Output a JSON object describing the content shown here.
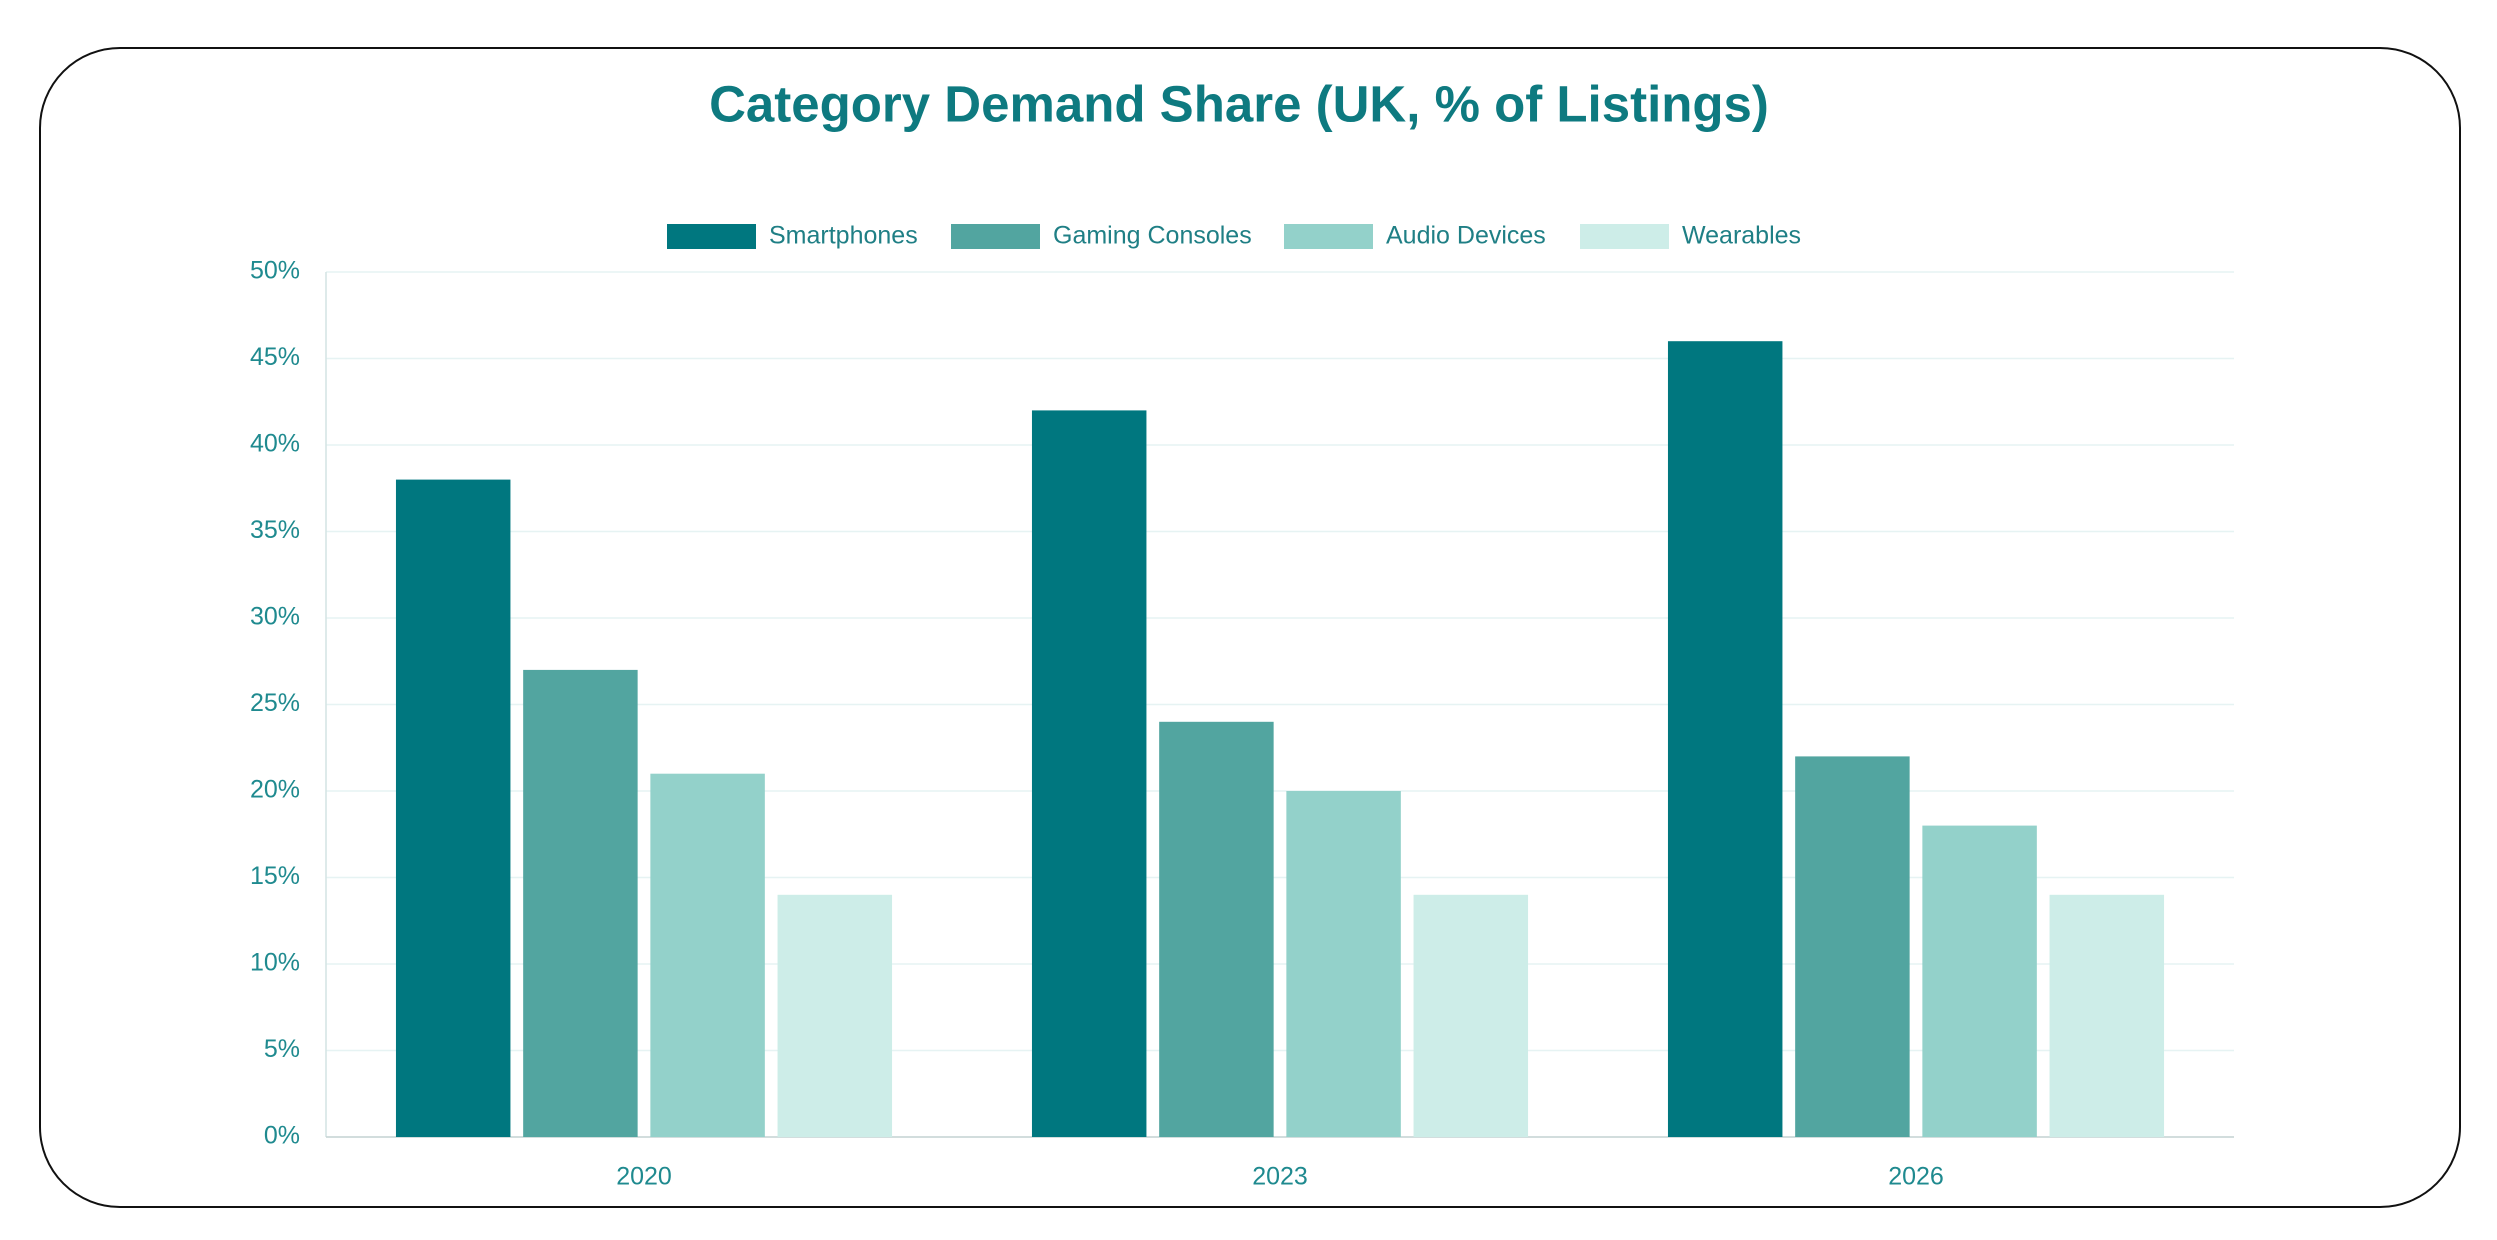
{
  "chart_data": {
    "type": "bar",
    "title": "Category Demand Share (UK, % of Listings)",
    "categories": [
      "2020",
      "2023",
      "2026"
    ],
    "series": [
      {
        "name": "Smartphones",
        "color": "#00777f",
        "values": [
          38,
          42,
          46
        ]
      },
      {
        "name": "Gaming Consoles",
        "color": "#52a5a0",
        "values": [
          27,
          24,
          22
        ]
      },
      {
        "name": "Audio Devices",
        "color": "#93d1ca",
        "values": [
          21,
          20,
          18
        ]
      },
      {
        "name": "Wearables",
        "color": "#cdede8",
        "values": [
          14,
          14,
          14
        ]
      }
    ],
    "ylim": [
      0,
      50
    ],
    "yticks": [
      {
        "value": 0,
        "label": "0%"
      },
      {
        "value": 5,
        "label": "5%"
      },
      {
        "value": 10,
        "label": "10%"
      },
      {
        "value": 15,
        "label": "15%"
      },
      {
        "value": 20,
        "label": "20%"
      },
      {
        "value": 25,
        "label": "25%"
      },
      {
        "value": 30,
        "label": "30%"
      },
      {
        "value": 35,
        "label": "35%"
      },
      {
        "value": 40,
        "label": "40%"
      },
      {
        "value": 45,
        "label": "45%"
      },
      {
        "value": 50,
        "label": "50%"
      }
    ],
    "grid": true,
    "legend": "top"
  }
}
